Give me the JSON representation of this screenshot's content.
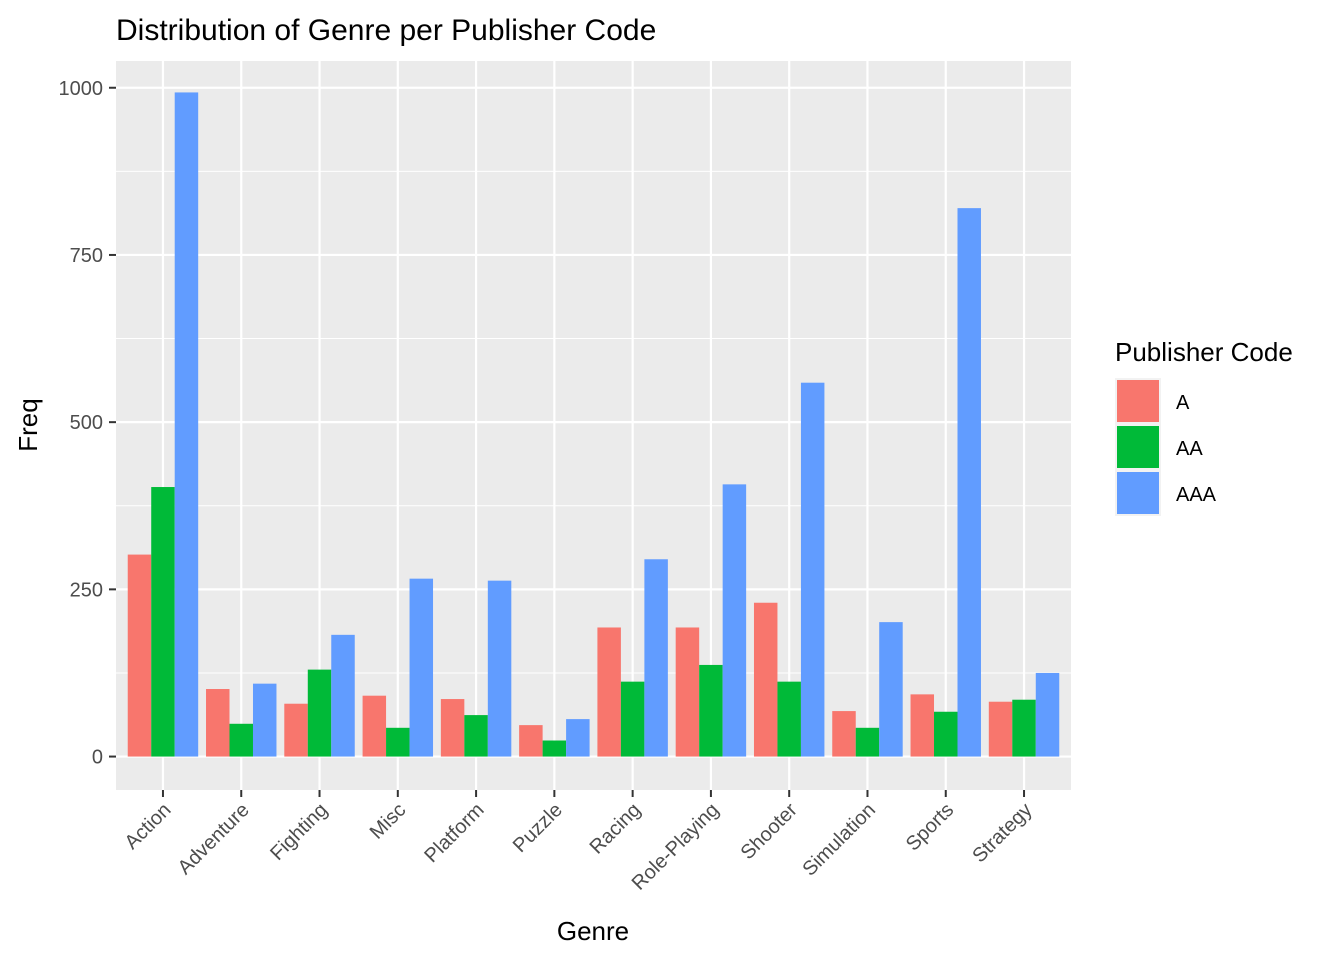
{
  "chart_data": {
    "type": "bar",
    "title": "Distribution of Genre per Publisher Code",
    "xlabel": "Genre",
    "ylabel": "Freq",
    "ylim": [
      -50,
      1040
    ],
    "yticks": [
      0,
      250,
      500,
      750,
      1000
    ],
    "grid": true,
    "legend": {
      "title": "Publisher Code",
      "position": "right"
    },
    "categories": [
      "Action",
      "Adventure",
      "Fighting",
      "Misc",
      "Platform",
      "Puzzle",
      "Racing",
      "Role-Playing",
      "Shooter",
      "Simulation",
      "Sports",
      "Strategy"
    ],
    "series": [
      {
        "name": "A",
        "color": "#F8766D",
        "values": [
          302,
          101,
          79,
          91,
          86,
          47,
          193,
          193,
          230,
          68,
          93,
          82
        ]
      },
      {
        "name": "AA",
        "color": "#00BA38",
        "values": [
          403,
          49,
          130,
          43,
          62,
          24,
          112,
          137,
          112,
          43,
          67,
          85
        ]
      },
      {
        "name": "AAA",
        "color": "#619CFF",
        "values": [
          993,
          109,
          182,
          266,
          263,
          56,
          295,
          407,
          559,
          201,
          820,
          125
        ]
      }
    ]
  }
}
